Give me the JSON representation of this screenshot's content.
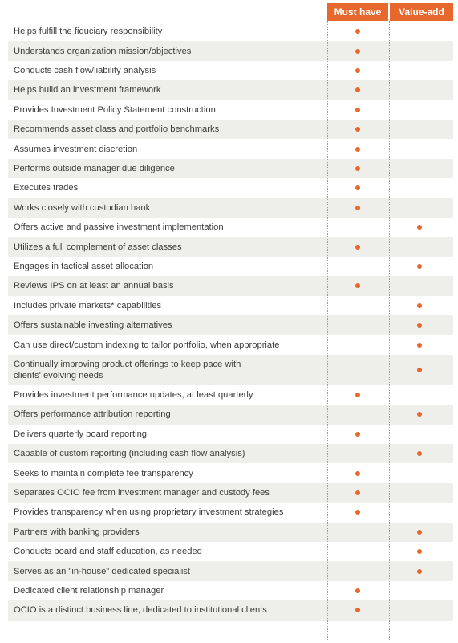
{
  "table": {
    "headers": [
      "Must have",
      "Value-add"
    ],
    "rows": [
      {
        "label": "Helps fulfill the fiduciary responsibility",
        "must_have": true,
        "value_add": false
      },
      {
        "label": "Understands organization mission/objectives",
        "must_have": true,
        "value_add": false
      },
      {
        "label": "Conducts cash flow/liability analysis",
        "must_have": true,
        "value_add": false
      },
      {
        "label": "Helps build an investment framework",
        "must_have": true,
        "value_add": false
      },
      {
        "label": "Provides Investment Policy Statement construction",
        "must_have": true,
        "value_add": false
      },
      {
        "label": "Recommends asset class and portfolio benchmarks",
        "must_have": true,
        "value_add": false
      },
      {
        "label": "Assumes investment discretion",
        "must_have": true,
        "value_add": false
      },
      {
        "label": "Performs outside manager due diligence",
        "must_have": true,
        "value_add": false
      },
      {
        "label": "Executes trades",
        "must_have": true,
        "value_add": false
      },
      {
        "label": "Works closely with custodian bank",
        "must_have": true,
        "value_add": false
      },
      {
        "label": "Offers active and passive investment implementation",
        "must_have": false,
        "value_add": true
      },
      {
        "label": "Utilizes a full complement of asset classes",
        "must_have": true,
        "value_add": false
      },
      {
        "label": "Engages in tactical asset allocation",
        "must_have": false,
        "value_add": true
      },
      {
        "label": "Reviews IPS on at least an annual basis",
        "must_have": true,
        "value_add": false
      },
      {
        "label": "Includes private markets* capabilities",
        "must_have": false,
        "value_add": true
      },
      {
        "label": "Offers sustainable investing alternatives",
        "must_have": false,
        "value_add": true
      },
      {
        "label": "Can use direct/custom indexing to tailor portfolio, when appropriate",
        "must_have": false,
        "value_add": true
      },
      {
        "label": "Continually improving product offerings to keep pace with clients' evolving needs",
        "must_have": false,
        "value_add": true
      },
      {
        "label": "Provides investment performance updates, at least quarterly",
        "must_have": true,
        "value_add": false
      },
      {
        "label": "Offers performance attribution reporting",
        "must_have": false,
        "value_add": true
      },
      {
        "label": "Delivers quarterly board reporting",
        "must_have": true,
        "value_add": false
      },
      {
        "label": "Capable of custom reporting (including cash flow analysis)",
        "must_have": false,
        "value_add": true
      },
      {
        "label": "Seeks to maintain complete fee transparency",
        "must_have": true,
        "value_add": false
      },
      {
        "label": "Separates OCIO fee from investment manager and custody fees",
        "must_have": true,
        "value_add": false
      },
      {
        "label": "Provides transparency when using proprietary investment strategies",
        "must_have": true,
        "value_add": false
      },
      {
        "label": "Partners with banking providers",
        "must_have": false,
        "value_add": true
      },
      {
        "label": "Conducts board and staff education, as needed",
        "must_have": false,
        "value_add": true
      },
      {
        "label": "Serves as an \"in-house\" dedicated specialist",
        "must_have": false,
        "value_add": true
      },
      {
        "label": "Dedicated client relationship manager",
        "must_have": true,
        "value_add": false
      },
      {
        "label": "OCIO is a distinct business line, dedicated to institutional clients",
        "must_have": true,
        "value_add": false
      }
    ]
  }
}
